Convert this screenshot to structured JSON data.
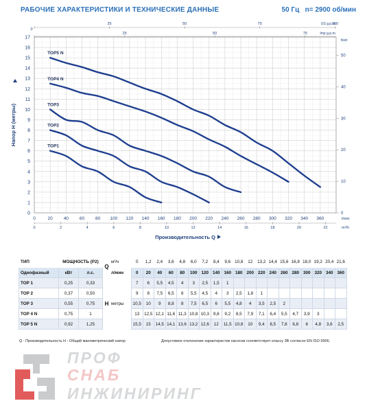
{
  "header": {
    "title": "РАБОЧИЕ ХАРАКТЕРИСТИКИ И ТЕХНИЧЕСКИЕ ДАННЫЕ",
    "freq": "50 Гц",
    "speed": "n= 2900 об/мин"
  },
  "chart_data": {
    "type": "line",
    "xlabel": "Производительность Q",
    "ylabel": "Напор H (метры)",
    "xlim": [
      0,
      380
    ],
    "ylim": [
      0,
      17
    ],
    "x_ticks": [
      0,
      20,
      40,
      60,
      80,
      100,
      120,
      140,
      160,
      180,
      200,
      220,
      240,
      260,
      280,
      300,
      320,
      340,
      360
    ],
    "y_ticks": [
      0,
      1,
      2,
      3,
      4,
      5,
      6,
      7,
      8,
      9,
      10,
      11,
      12,
      13,
      14,
      15,
      16,
      17
    ],
    "x_unit": "l/min",
    "bottom_axis": {
      "ticks": [
        0,
        2,
        4,
        6,
        8,
        10,
        12,
        14,
        16,
        18,
        20,
        22
      ],
      "unit": "m³/h"
    },
    "top_axis_1": {
      "ticks": [
        0,
        25,
        50,
        75,
        100
      ],
      "unit": "US g.p.m."
    },
    "top_axis_2": {
      "ticks": [
        0,
        25,
        50,
        75,
        100
      ],
      "unit": "Imp g.p.m."
    },
    "right_axis": {
      "ticks": [
        0,
        10,
        20,
        30,
        40,
        50
      ],
      "unit": "feet"
    },
    "grid": true,
    "series": [
      {
        "name": "TOP1",
        "x": [
          20,
          40,
          60,
          80,
          100,
          120,
          140,
          160
        ],
        "y": [
          6,
          5.5,
          4.5,
          4,
          3,
          2.5,
          1.5,
          1
        ]
      },
      {
        "name": "TOP2",
        "x": [
          20,
          40,
          60,
          80,
          100,
          120,
          140,
          160,
          180,
          200,
          220
        ],
        "y": [
          8,
          7.5,
          6.5,
          6,
          5.5,
          4.5,
          4,
          3,
          2.5,
          1.8,
          1
        ]
      },
      {
        "name": "TOP3",
        "x": [
          20,
          40,
          60,
          80,
          100,
          120,
          140,
          160,
          180,
          200,
          220,
          240,
          260
        ],
        "y": [
          10,
          9,
          8.8,
          8,
          7.5,
          6.5,
          6,
          5.5,
          4.8,
          4,
          3.5,
          2.5,
          2
        ]
      },
      {
        "name": "TOP4 N",
        "x": [
          20,
          40,
          60,
          80,
          100,
          120,
          140,
          160,
          180,
          200,
          220,
          240,
          260,
          280,
          300,
          320
        ],
        "y": [
          12.5,
          12.1,
          11.6,
          11.3,
          10.8,
          10.3,
          9.8,
          9.2,
          8.5,
          7.9,
          7.1,
          6.4,
          5.5,
          4.7,
          3.9,
          3
        ]
      },
      {
        "name": "TOP5 N",
        "x": [
          20,
          40,
          60,
          80,
          100,
          120,
          140,
          160,
          180,
          200,
          220,
          240,
          260,
          280,
          300,
          320,
          340,
          360
        ],
        "y": [
          15,
          14.5,
          14.1,
          13.6,
          13.2,
          12.6,
          12,
          11.5,
          10.8,
          10,
          9.4,
          8.5,
          7.8,
          6.8,
          6,
          4.8,
          3.6,
          2.5
        ]
      }
    ]
  },
  "table": {
    "h_type": "ТИП",
    "h_power": "МОЩНОСТЬ (P2)",
    "h_phase": "Однофазный",
    "h_kw": "кВт",
    "h_hp": "л.с.",
    "q_symbol": "Q",
    "unit_m3h": "м³/ч",
    "unit_lmin": "л/мин",
    "h_symbol": "H",
    "h_unit": "метры",
    "m3h": [
      "0",
      "1,2",
      "2,4",
      "3,6",
      "4,8",
      "6,0",
      "7,2",
      "8,4",
      "9,6",
      "10,8",
      "12",
      "13,2",
      "14,4",
      "15,6",
      "16,8",
      "18,0",
      "19,2",
      "20,4",
      "21,6"
    ],
    "lmin": [
      "0",
      "20",
      "40",
      "60",
      "80",
      "100",
      "120",
      "140",
      "160",
      "180",
      "200",
      "220",
      "240",
      "260",
      "280",
      "300",
      "320",
      "340",
      "360"
    ],
    "rows": [
      {
        "name": "TOP 1",
        "kw": "0,25",
        "hp": "0,33",
        "h": [
          "7",
          "6",
          "5,5",
          "4,5",
          "4",
          "3",
          "2,5",
          "1,5",
          "1",
          "",
          "",
          "",
          "",
          "",
          "",
          "",
          "",
          "",
          ""
        ]
      },
      {
        "name": "TOP 2",
        "kw": "0,37",
        "hp": "0,50",
        "h": [
          "9",
          "8",
          "7,5",
          "6,5",
          "6",
          "5,5",
          "4,5",
          "4",
          "3",
          "2,5",
          "1,8",
          "1",
          "",
          "",
          "",
          "",
          "",
          "",
          ""
        ]
      },
      {
        "name": "TOP 3",
        "kw": "0,55",
        "hp": "0,75",
        "h": [
          "10,5",
          "10",
          "9",
          "8,8",
          "8",
          "7,5",
          "6,5",
          "6",
          "5,5",
          "4,8",
          "4",
          "3,5",
          "2,5",
          "2",
          "",
          "",
          "",
          "",
          ""
        ]
      },
      {
        "name": "TOP 4 N",
        "kw": "0,75",
        "hp": "1",
        "h": [
          "13",
          "12,5",
          "12,1",
          "11,6",
          "11,3",
          "10,8",
          "10,3",
          "9,8",
          "9,2",
          "8,5",
          "7,9",
          "7,1",
          "6,4",
          "5,5",
          "4,7",
          "3,9",
          "3",
          "",
          ""
        ]
      },
      {
        "name": "TOP 5 N",
        "kw": "0,92",
        "hp": "1,25",
        "h": [
          "15,5",
          "15",
          "14,5",
          "14,1",
          "13,6",
          "13,2",
          "12,6",
          "12",
          "11,5",
          "10,8",
          "10",
          "9,4",
          "8,5",
          "7,8",
          "6,8",
          "6",
          "4,8",
          "3,6",
          "2,5"
        ]
      }
    ]
  },
  "footnote": {
    "left": "Q - Производительность   H - Общий манометрический напор",
    "right": "Допустимое отклонение характеристик насосов соответствует классу 3B согласно EN ISO 9906."
  },
  "logo": {
    "line1": "ПРОФ",
    "line2": "СНАБ",
    "line3": "ИНЖИНИРИНГ"
  },
  "colors": {
    "curve": "#1f3f8f",
    "grid": "#cfcfcf",
    "accent": "#2a6fb8",
    "axis_text": "#1d3f7a",
    "logo_red": "#e25b5b",
    "logo_grey": "#c9cbcd"
  }
}
